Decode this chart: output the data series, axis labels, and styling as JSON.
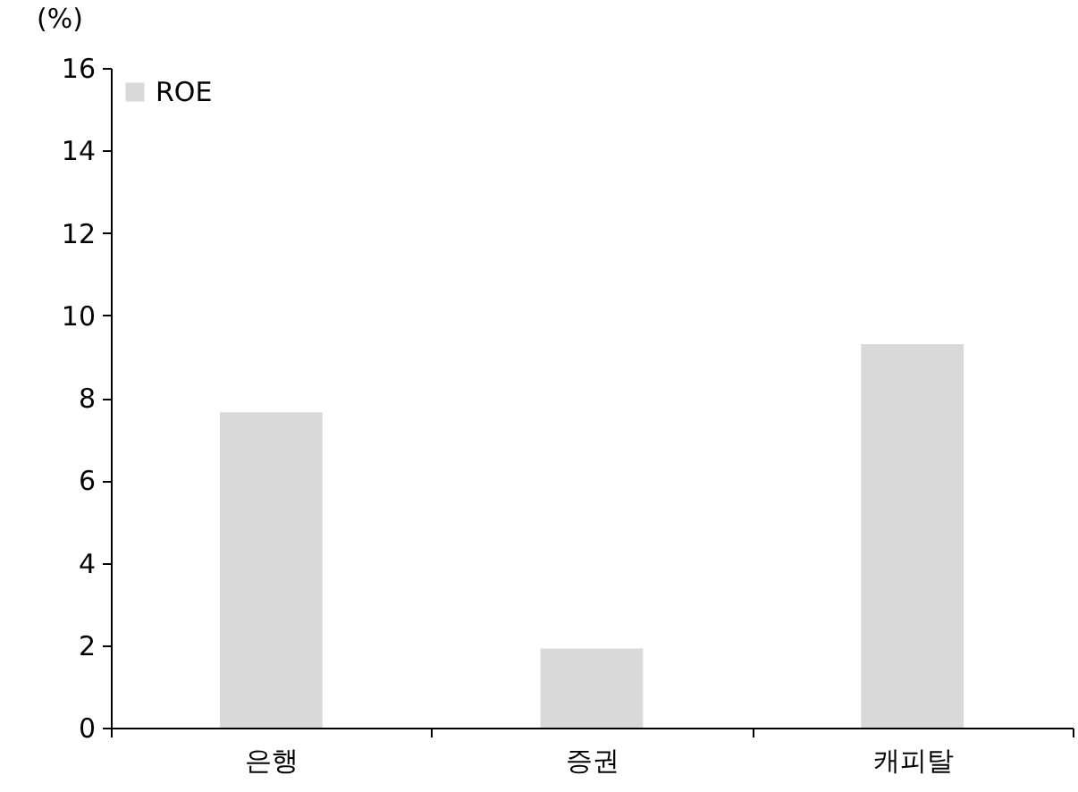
{
  "chart_data": {
    "type": "bar",
    "ylabel": "(%)",
    "categories": [
      "은행",
      "증권",
      "캐피탈"
    ],
    "series": [
      {
        "name": "ROE",
        "color": "#d9d9d9",
        "values": [
          7.65,
          1.92,
          9.3
        ]
      }
    ],
    "ylim": [
      0,
      16
    ],
    "yticks": [
      0,
      2,
      4,
      6,
      8,
      10,
      12,
      14,
      16
    ],
    "grid": false,
    "legend": "top left"
  }
}
